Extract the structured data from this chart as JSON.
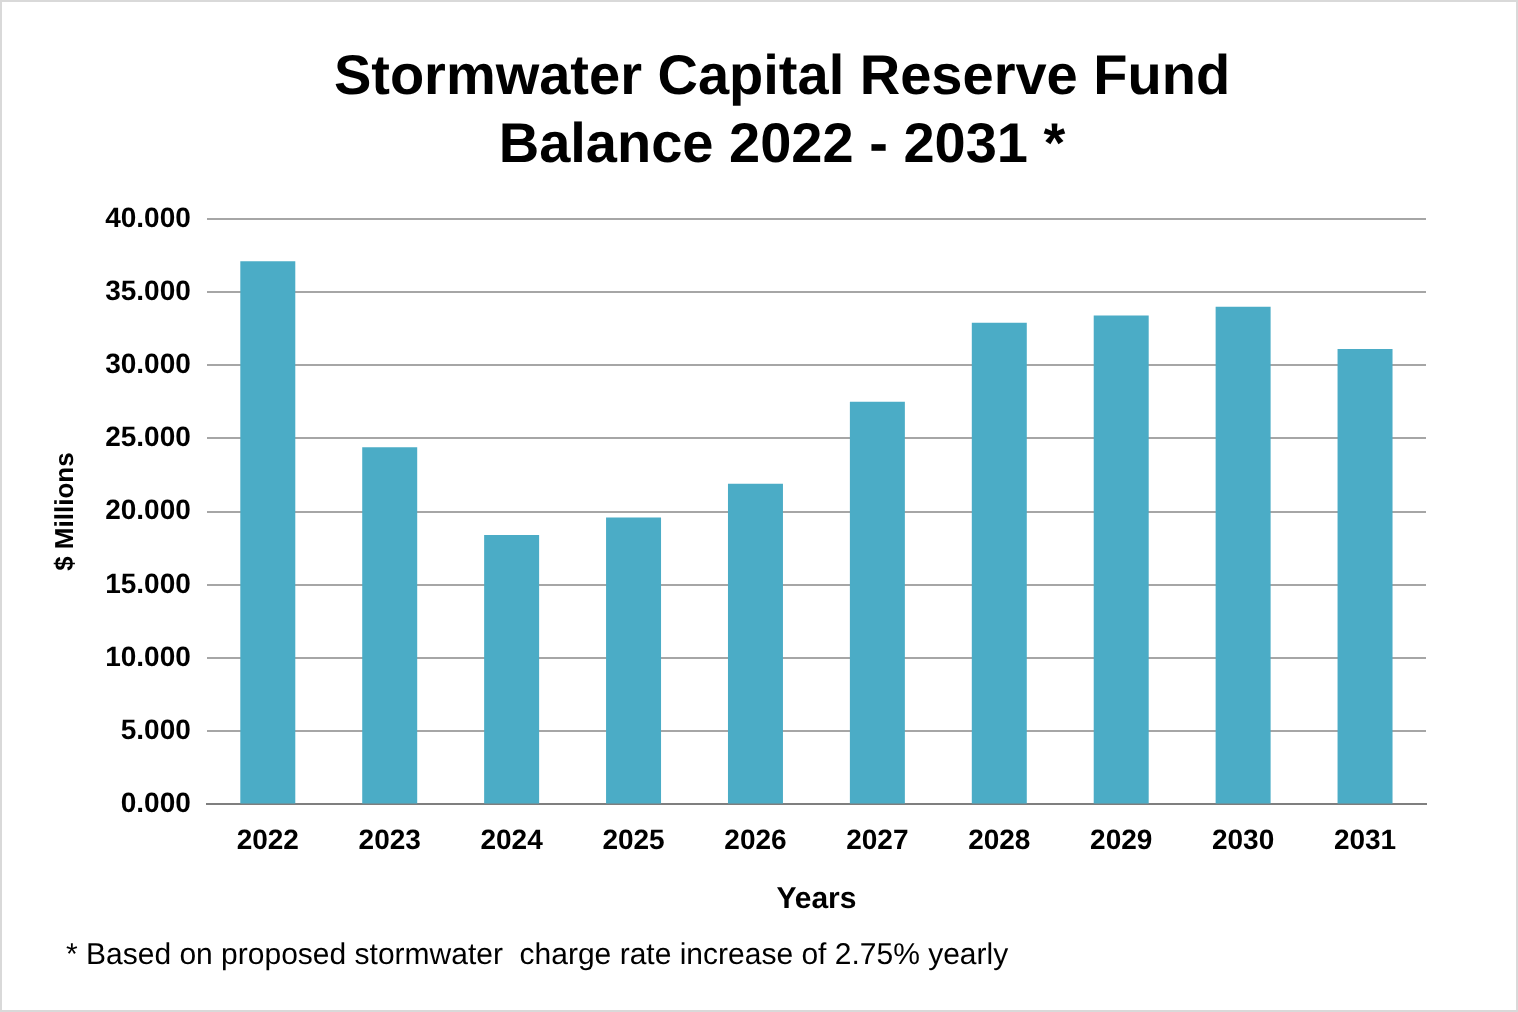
{
  "chart_data": {
    "type": "bar",
    "title": "Stormwater Capital Reserve Fund Balance 2022 - 2031 *",
    "xlabel": "Years",
    "ylabel": "$ Millions",
    "categories": [
      "2022",
      "2023",
      "2024",
      "2025",
      "2026",
      "2027",
      "2028",
      "2029",
      "2030",
      "2031"
    ],
    "values": [
      37.1,
      24.4,
      18.4,
      19.6,
      21.9,
      27.5,
      32.9,
      33.4,
      34.0,
      31.1
    ],
    "color": "#4bacc6",
    "ylim": [
      0,
      40
    ],
    "yticks": [
      {
        "value": 0,
        "label": "0.000"
      },
      {
        "value": 5,
        "label": "5.000"
      },
      {
        "value": 10,
        "label": "10.000"
      },
      {
        "value": 15,
        "label": "15.000"
      },
      {
        "value": 20,
        "label": "20.000"
      },
      {
        "value": 25,
        "label": "25.000"
      },
      {
        "value": 30,
        "label": "30.000"
      },
      {
        "value": 35,
        "label": "35.000"
      },
      {
        "value": 40,
        "label": "40.000"
      }
    ],
    "grid": "y",
    "annotations": [
      "* Based on proposed stormwater  charge rate increase of 2.75% yearly"
    ]
  }
}
